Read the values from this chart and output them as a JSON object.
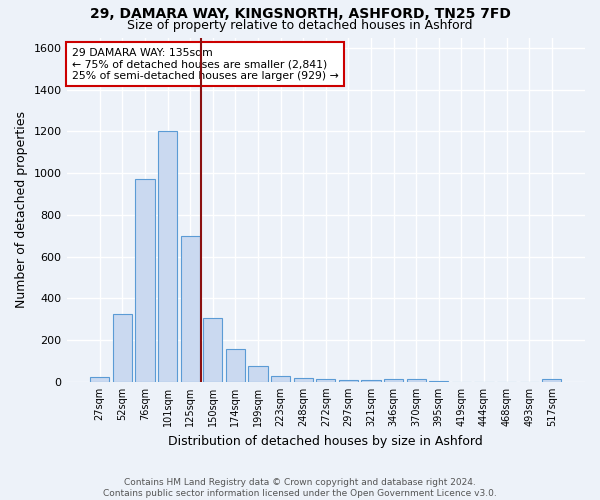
{
  "title1": "29, DAMARA WAY, KINGSNORTH, ASHFORD, TN25 7FD",
  "title2": "Size of property relative to detached houses in Ashford",
  "xlabel": "Distribution of detached houses by size in Ashford",
  "ylabel": "Number of detached properties",
  "footer1": "Contains HM Land Registry data © Crown copyright and database right 2024.",
  "footer2": "Contains public sector information licensed under the Open Government Licence v3.0.",
  "bar_labels": [
    "27sqm",
    "52sqm",
    "76sqm",
    "101sqm",
    "125sqm",
    "150sqm",
    "174sqm",
    "199sqm",
    "223sqm",
    "248sqm",
    "272sqm",
    "297sqm",
    "321sqm",
    "346sqm",
    "370sqm",
    "395sqm",
    "419sqm",
    "444sqm",
    "468sqm",
    "493sqm",
    "517sqm"
  ],
  "bar_values": [
    25,
    325,
    970,
    1200,
    700,
    305,
    155,
    75,
    28,
    18,
    12,
    10,
    8,
    12,
    15,
    3,
    0,
    0,
    0,
    0,
    12
  ],
  "bar_color": "#cad9f0",
  "bar_edge_color": "#5b9bd5",
  "bg_color": "#edf2f9",
  "grid_color": "#ffffff",
  "vline_x": 4.5,
  "vline_color": "#8b1010",
  "annotation_line1": "29 DAMARA WAY: 135sqm",
  "annotation_line2": "← 75% of detached houses are smaller (2,841)",
  "annotation_line3": "25% of semi-detached houses are larger (929) →",
  "annotation_box_color": "#ffffff",
  "annotation_edge_color": "#cc0000",
  "ylim": [
    0,
    1650
  ],
  "yticks": [
    0,
    200,
    400,
    600,
    800,
    1000,
    1200,
    1400,
    1600
  ]
}
